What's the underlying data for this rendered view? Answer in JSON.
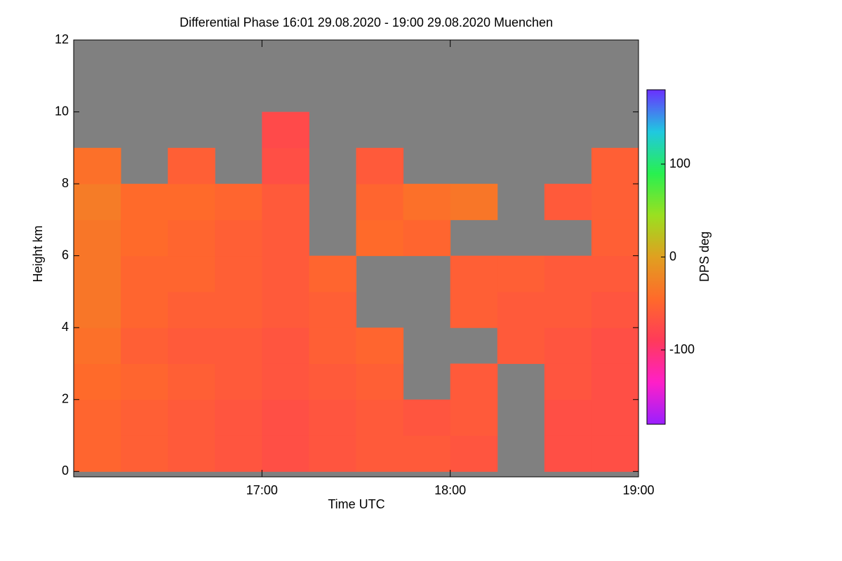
{
  "chart_data": {
    "type": "heatmap",
    "title": "Differential Phase   16:01 29.08.2020 - 19:00 29.08.2020 Muenchen",
    "x_label": "Time UTC",
    "y_label": "Height km",
    "colorbar_label": "DPS deg",
    "x": [
      16.0,
      16.25,
      16.5,
      16.75,
      17.0,
      17.25,
      17.5,
      17.75,
      18.0,
      18.25,
      18.5,
      18.75,
      19.0
    ],
    "y": [
      0,
      1,
      2,
      3,
      4,
      5,
      6,
      7,
      8,
      9,
      10,
      11,
      12
    ],
    "z": [
      [
        -50,
        -55,
        -60,
        -65,
        -70,
        -65,
        -60,
        -60,
        -65,
        null,
        -70,
        -70
      ],
      [
        -50,
        -55,
        -60,
        -65,
        -70,
        -65,
        -60,
        -65,
        -60,
        null,
        -70,
        -70
      ],
      [
        -45,
        -50,
        -55,
        -60,
        -65,
        -60,
        -55,
        null,
        -60,
        null,
        -65,
        -70
      ],
      [
        -40,
        -55,
        -60,
        -60,
        -65,
        -55,
        -50,
        null,
        null,
        -60,
        -65,
        -70
      ],
      [
        -35,
        -50,
        -55,
        -55,
        -60,
        -55,
        null,
        null,
        -55,
        -60,
        -60,
        -65
      ],
      [
        -35,
        -50,
        -50,
        -55,
        -60,
        -50,
        null,
        null,
        -55,
        -55,
        -60,
        -60
      ],
      [
        -35,
        -45,
        -50,
        -55,
        -60,
        null,
        -45,
        -50,
        null,
        null,
        null,
        -55
      ],
      [
        -30,
        -45,
        -45,
        -50,
        -60,
        null,
        -50,
        -40,
        -35,
        null,
        -60,
        -55
      ],
      [
        -40,
        null,
        -55,
        null,
        -70,
        null,
        -60,
        null,
        null,
        null,
        null,
        -55
      ],
      [
        null,
        null,
        null,
        null,
        -75,
        null,
        null,
        null,
        null,
        null,
        null,
        null
      ],
      [
        null,
        null,
        null,
        null,
        null,
        null,
        null,
        null,
        null,
        null,
        null,
        null
      ],
      [
        null,
        null,
        null,
        null,
        null,
        null,
        null,
        null,
        null,
        null,
        null,
        null
      ]
    ],
    "xlim": [
      16.0,
      19.0
    ],
    "xticks": [
      {
        "value": 17,
        "label": "17:00"
      },
      {
        "value": 18,
        "label": "18:00"
      },
      {
        "value": 19,
        "label": "19:00"
      }
    ],
    "ylim": [
      -0.15,
      12
    ],
    "yticks": [
      0,
      2,
      4,
      6,
      8,
      10,
      12
    ],
    "zlim": [
      -180,
      180
    ],
    "zticks": [
      -100,
      0,
      100
    ],
    "colormap": [
      "#9a1fff",
      "#ff1fc8",
      "#ff3a5a",
      "#ff6a2a",
      "#e0a020",
      "#9ae020",
      "#28f050",
      "#20c8e0",
      "#6a30ff"
    ],
    "null_color": "#808080"
  }
}
